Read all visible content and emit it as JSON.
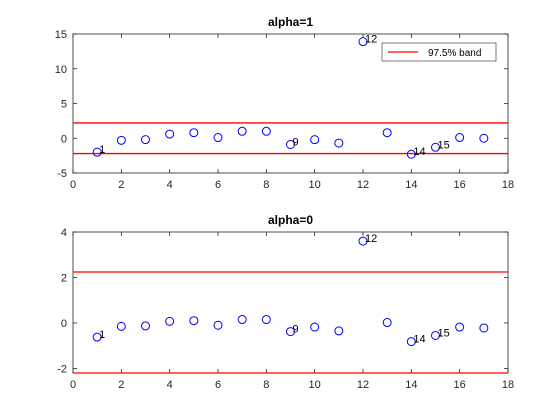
{
  "chart_data": [
    {
      "type": "scatter",
      "title": "alpha=1",
      "xlabel": "",
      "ylabel": "",
      "xlim": [
        0,
        18
      ],
      "ylim": [
        -5,
        15
      ],
      "xticks": [
        0,
        2,
        4,
        6,
        8,
        10,
        12,
        14,
        16,
        18
      ],
      "yticks": [
        -5,
        0,
        5,
        10,
        15
      ],
      "grid": false,
      "marker": "circle",
      "marker_color": "#0000ff",
      "x": [
        1,
        2,
        3,
        4,
        5,
        6,
        7,
        8,
        9,
        10,
        11,
        12,
        13,
        14,
        15,
        16,
        17
      ],
      "y": [
        -2.0,
        -0.3,
        -0.2,
        0.6,
        0.8,
        0.1,
        1.0,
        1.0,
        -0.9,
        -0.2,
        -0.7,
        13.9,
        0.8,
        -2.3,
        -1.3,
        0.1,
        0.0
      ],
      "point_labels": [
        {
          "index": 0,
          "text": "1"
        },
        {
          "index": 8,
          "text": "9"
        },
        {
          "index": 11,
          "text": "12"
        },
        {
          "index": 13,
          "text": "14"
        },
        {
          "index": 14,
          "text": "15"
        }
      ],
      "band": {
        "upper": 2.2,
        "lower": -2.2,
        "color": "#ff0000"
      },
      "legend": {
        "entries": [
          "97.5% band"
        ],
        "location": "top-right"
      }
    },
    {
      "type": "scatter",
      "title": "alpha=0",
      "xlabel": "",
      "ylabel": "",
      "xlim": [
        0,
        18
      ],
      "ylim": [
        -2.2,
        4
      ],
      "xticks": [
        0,
        2,
        4,
        6,
        8,
        10,
        12,
        14,
        16,
        18
      ],
      "yticks": [
        -2,
        0,
        2,
        4
      ],
      "grid": false,
      "marker": "circle",
      "marker_color": "#0000ff",
      "x": [
        1,
        2,
        3,
        4,
        5,
        6,
        7,
        8,
        9,
        10,
        11,
        12,
        13,
        14,
        15,
        16,
        17
      ],
      "y": [
        -0.62,
        -0.15,
        -0.13,
        0.07,
        0.1,
        -0.1,
        0.15,
        0.15,
        -0.38,
        -0.18,
        -0.35,
        3.6,
        0.02,
        -0.82,
        -0.55,
        -0.18,
        -0.22
      ],
      "point_labels": [
        {
          "index": 0,
          "text": "1"
        },
        {
          "index": 8,
          "text": "9"
        },
        {
          "index": 11,
          "text": "12"
        },
        {
          "index": 13,
          "text": "14"
        },
        {
          "index": 14,
          "text": "15"
        }
      ],
      "band": {
        "upper": 2.24,
        "lower": -2.2,
        "color": "#ff0000"
      }
    }
  ]
}
